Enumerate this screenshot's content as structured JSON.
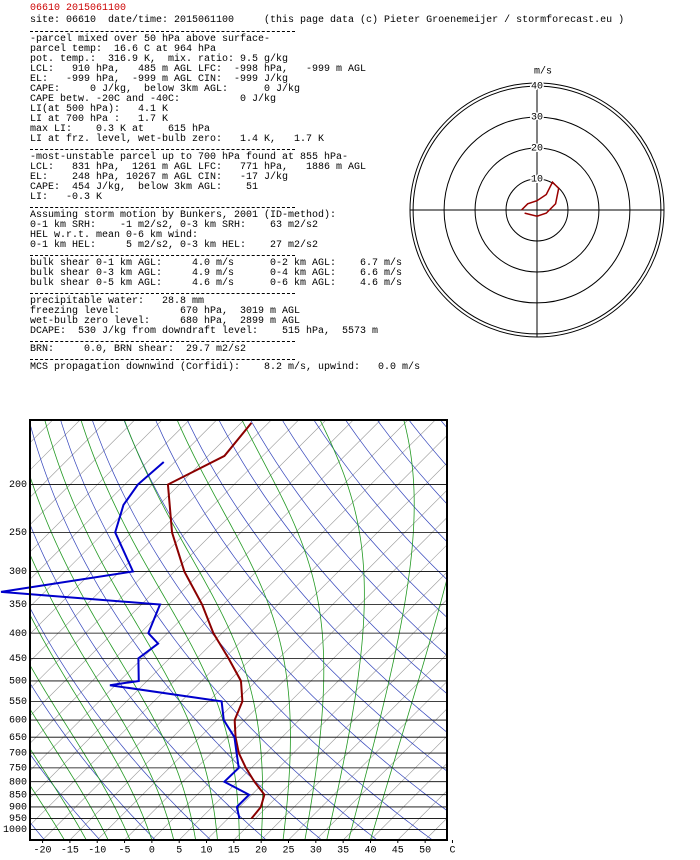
{
  "header": {
    "code": "06610 2015061100",
    "site_line": "site: 06610  date/time: 2015061100     (this page data (c) Pieter Groenemeijer / stormforecast.eu )"
  },
  "sections": [
    [
      "-parcel mixed over 50 hPa above surface-",
      "parcel temp:  16.6 C at 964 hPa",
      "pot. temp.:  316.9 K,  mix. ratio: 9.5 g/kg",
      "LCL:   910 hPa,   485 m AGL LFC:  -998 hPa,   -999 m AGL",
      "EL:   -999 hPa,  -999 m AGL CIN:  -999 J/kg",
      "CAPE:     0 J/kg,  below 3km AGL:      0 J/kg",
      "CAPE betw. -20C and -40C:          0 J/kg",
      "LI(at 500 hPa):   4.1 K",
      "LI at 700 hPa :   1.7 K",
      "max LI:    0.3 K at    615 hPa",
      "LI at frz. level, wet-bulb zero:   1.4 K,   1.7 K"
    ],
    [
      "-most-unstable parcel up to 700 hPa found at 855 hPa-",
      "LCL:   831 hPa,  1261 m AGL LFC:   771 hPa,   1886 m AGL",
      "EL:    248 hPa, 10267 m AGL CIN:   -17 J/kg",
      "CAPE:  454 J/kg,  below 3km AGL:    51",
      "LI:   -0.3 K"
    ],
    [
      "Assuming storm motion by Bunkers, 2001 (ID-method):",
      "0-1 km SRH:    -1 m2/s2, 0-3 km SRH:    63 m2/s2",
      "HEL w.r.t. mean 0-6 km wind:",
      "0-1 km HEL:     5 m2/s2, 0-3 km HEL:    27 m2/s2"
    ],
    [
      "bulk shear 0-1 km AGL:     4.0 m/s      0-2 km AGL:    6.7 m/s",
      "bulk shear 0-3 km AGL:     4.9 m/s      0-4 km AGL:    6.6 m/s",
      "bulk shear 0-5 km AGL:     4.6 m/s      0-6 km AGL:    4.6 m/s"
    ],
    [
      "precipitable water:   28.8 mm",
      "freezing level:          670 hPa,  3019 m AGL",
      "wet-bulb zero level:     680 hPa,  2899 m AGL",
      "DCAPE:  530 J/kg from downdraft level:    515 hPa,  5573 m"
    ],
    [
      "BRN:     0.0, BRN shear:  29.7 m2/s2"
    ],
    [
      "MCS propagation downwind (Corfidi):    8.2 m/s, upwind:   0.0 m/s"
    ]
  ],
  "chart_data": [
    {
      "type": "hodograph",
      "unit": "m/s",
      "rings": [
        10,
        20,
        30,
        40
      ],
      "rlim": 41,
      "color": "#990000",
      "u": [
        -5,
        -3,
        0,
        3,
        5,
        7,
        6,
        3,
        0,
        -4
      ],
      "v": [
        0,
        2,
        3,
        5,
        9,
        7,
        2,
        -1,
        -2,
        -1
      ]
    },
    {
      "type": "skewt",
      "ylim": [
        1050,
        148
      ],
      "xlim": [
        -22.3,
        54
      ],
      "yticks": [
        200,
        250,
        300,
        350,
        400,
        450,
        500,
        550,
        600,
        650,
        700,
        750,
        800,
        850,
        900,
        950,
        1000
      ],
      "xticks": [
        -20,
        -15,
        -10,
        -5,
        0,
        5,
        10,
        15,
        20,
        25,
        30,
        35,
        40,
        45,
        50,
        {
          "value": 55,
          "label": "C"
        }
      ],
      "series": [
        {
          "color": "#8b0000",
          "pressure": [
            950,
            900,
            850,
            800,
            750,
            700,
            650,
            600,
            550,
            500,
            450,
            400,
            350,
            300,
            250,
            200,
            175,
            150
          ],
          "values": [
            14.3,
            13.9,
            12.3,
            8.1,
            4.0,
            0,
            -3.5,
            -6.8,
            -8.8,
            -12.8,
            -19.2,
            -26.6,
            -33.9,
            -43.2,
            -52.6,
            -62.1,
            -57,
            -58.1
          ]
        },
        {
          "color": "#0000cc",
          "pressure": [
            950,
            900,
            850,
            800,
            750,
            700,
            650,
            600,
            550,
            510,
            500,
            450,
            420,
            400,
            350,
            330,
            300,
            250,
            220,
            200,
            180
          ],
          "values": [
            12.1,
            9.5,
            9.5,
            2.6,
            2.7,
            -0.4,
            -3.7,
            -8.8,
            -12.6,
            -36,
            -31.5,
            -35.7,
            -34.8,
            -38.5,
            -41.6,
            -73,
            -52.6,
            -63,
            -66.5,
            -67.6,
            -67
          ]
        }
      ]
    }
  ]
}
